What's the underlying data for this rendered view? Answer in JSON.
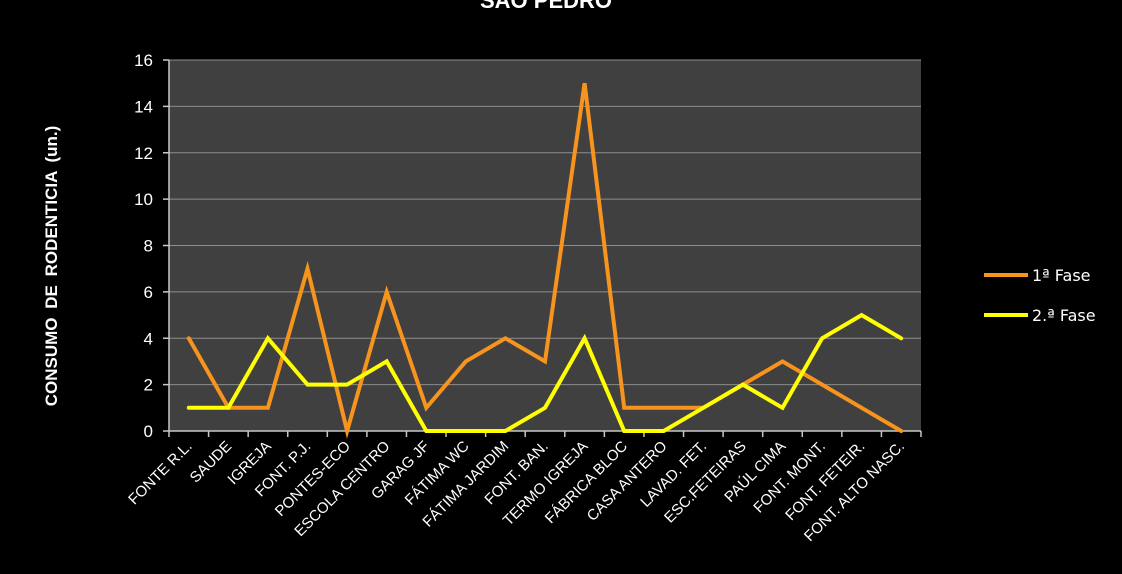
{
  "chart_data": {
    "type": "line",
    "title": "SÃO PEDRO",
    "ylabel": "CONSUMO  DE  RODENTICIA  (un.)",
    "xlabel": "",
    "ylim": [
      0,
      16
    ],
    "yticks": [
      0,
      2,
      4,
      6,
      8,
      10,
      12,
      14,
      16
    ],
    "grid": true,
    "legend_position": "right",
    "categories": [
      "FONTE R.L.",
      "SAUDE",
      "IGREJA",
      "FONT. P.J.",
      "PONTES-ECO",
      "ESCOLA CENTRO",
      "GARAG JF",
      "FÁTIMA WC",
      "FÁTIMA JARDIM",
      "FONT. BAN.",
      "TERMO IGREJA",
      "FÁBRICA BLOC",
      "CASA ANTERO",
      "LAVAD. FET.",
      "ESC.FETEIRAS",
      "PAÚL CIMA",
      "FONT. MONT.",
      "FONT. FETEIR.",
      "FONT. ALTO NASC."
    ],
    "series": [
      {
        "name": "1ª Fase",
        "color": "#f7941d",
        "values": [
          4,
          1,
          1,
          7,
          0,
          6,
          1,
          3,
          4,
          3,
          15,
          1,
          1,
          1,
          2,
          3,
          2,
          1,
          0
        ]
      },
      {
        "name": "2.ª Fase",
        "color": "#ffff00",
        "values": [
          1,
          1,
          4,
          2,
          2,
          3,
          0,
          0,
          0,
          1,
          4,
          0,
          0,
          1,
          2,
          1,
          4,
          5,
          4
        ]
      }
    ],
    "colors": {
      "background": "#000000",
      "plot_background": "#404040",
      "gridline": "#8c8c8c",
      "text": "#ffffff"
    }
  }
}
